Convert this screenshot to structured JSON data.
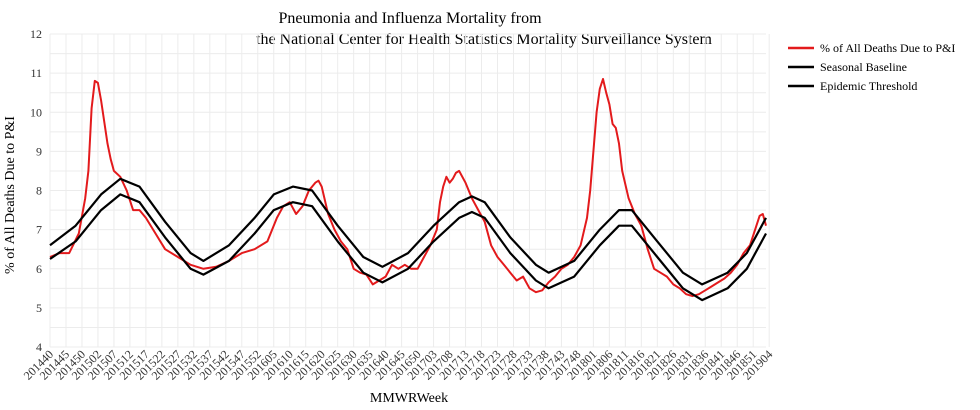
{
  "chart_data": {
    "type": "line",
    "title": [
      "Pneumonia and Influenza Mortality from",
      "the National Center for Health Statistics Mortality Surveillance System"
    ],
    "xlabel": "MMWRWeek",
    "ylabel": "% of All Deaths Due to P&I",
    "ylim": [
      4,
      12
    ],
    "y_ticks": [
      4,
      5,
      6,
      7,
      8,
      9,
      10,
      11,
      12
    ],
    "x_tick_labels": [
      "201440",
      "201445",
      "201450",
      "201502",
      "201507",
      "201512",
      "201517",
      "201522",
      "201527",
      "201532",
      "201537",
      "201542",
      "201547",
      "201552",
      "201605",
      "201610",
      "201615",
      "201620",
      "201625",
      "201630",
      "201635",
      "201640",
      "201645",
      "201650",
      "201703",
      "201708",
      "201713",
      "201718",
      "201723",
      "201728",
      "201733",
      "201738",
      "201743",
      "201748",
      "201801",
      "201806",
      "201811",
      "201816",
      "201821",
      "201826",
      "201831",
      "201836",
      "201841",
      "201846",
      "201851",
      "201904"
    ],
    "grid": true,
    "legend_position": "top-right",
    "series": [
      {
        "name": "% of All Deaths Due to P&I",
        "color": "#e31a1c",
        "points": [
          [
            0,
            6.3
          ],
          [
            3,
            6.4
          ],
          [
            6,
            6.4
          ],
          [
            9,
            6.9
          ],
          [
            11,
            7.8
          ],
          [
            12,
            8.5
          ],
          [
            13,
            10.1
          ],
          [
            14,
            10.8
          ],
          [
            15,
            10.75
          ],
          [
            16,
            10.3
          ],
          [
            18,
            9.2
          ],
          [
            19,
            8.8
          ],
          [
            20,
            8.5
          ],
          [
            22,
            8.35
          ],
          [
            24,
            8.0
          ],
          [
            26,
            7.5
          ],
          [
            28,
            7.5
          ],
          [
            30,
            7.3
          ],
          [
            33,
            6.9
          ],
          [
            36,
            6.5
          ],
          [
            40,
            6.3
          ],
          [
            44,
            6.1
          ],
          [
            48,
            6.0
          ],
          [
            52,
            6.05
          ],
          [
            56,
            6.2
          ],
          [
            60,
            6.4
          ],
          [
            64,
            6.5
          ],
          [
            68,
            6.7
          ],
          [
            71,
            7.3
          ],
          [
            73,
            7.6
          ],
          [
            75,
            7.7
          ],
          [
            77,
            7.4
          ],
          [
            79,
            7.6
          ],
          [
            81,
            8.0
          ],
          [
            83,
            8.2
          ],
          [
            84,
            8.25
          ],
          [
            85,
            8.1
          ],
          [
            87,
            7.4
          ],
          [
            89,
            7.0
          ],
          [
            91,
            6.7
          ],
          [
            93,
            6.5
          ],
          [
            95,
            6.0
          ],
          [
            97,
            5.9
          ],
          [
            99,
            5.85
          ],
          [
            101,
            5.6
          ],
          [
            103,
            5.7
          ],
          [
            105,
            5.8
          ],
          [
            107,
            6.1
          ],
          [
            109,
            6.0
          ],
          [
            111,
            6.1
          ],
          [
            113,
            6.0
          ],
          [
            115,
            6.0
          ],
          [
            117,
            6.3
          ],
          [
            119,
            6.6
          ],
          [
            121,
            7.0
          ],
          [
            122,
            7.7
          ],
          [
            123,
            8.1
          ],
          [
            124,
            8.35
          ],
          [
            125,
            8.2
          ],
          [
            126,
            8.3
          ],
          [
            127,
            8.45
          ],
          [
            128,
            8.5
          ],
          [
            130,
            8.2
          ],
          [
            132,
            7.8
          ],
          [
            134,
            7.5
          ],
          [
            136,
            7.2
          ],
          [
            138,
            6.6
          ],
          [
            140,
            6.3
          ],
          [
            142,
            6.1
          ],
          [
            144,
            5.9
          ],
          [
            146,
            5.7
          ],
          [
            148,
            5.8
          ],
          [
            150,
            5.5
          ],
          [
            152,
            5.4
          ],
          [
            154,
            5.45
          ],
          [
            156,
            5.65
          ],
          [
            158,
            5.8
          ],
          [
            160,
            6.0
          ],
          [
            162,
            6.1
          ],
          [
            164,
            6.3
          ],
          [
            166,
            6.6
          ],
          [
            168,
            7.3
          ],
          [
            169,
            8.0
          ],
          [
            170,
            9.0
          ],
          [
            171,
            10.0
          ],
          [
            172,
            10.6
          ],
          [
            173,
            10.85
          ],
          [
            174,
            10.5
          ],
          [
            175,
            10.2
          ],
          [
            176,
            9.7
          ],
          [
            177,
            9.6
          ],
          [
            178,
            9.2
          ],
          [
            179,
            8.5
          ],
          [
            181,
            7.8
          ],
          [
            183,
            7.4
          ],
          [
            185,
            7.1
          ],
          [
            187,
            6.5
          ],
          [
            189,
            6.0
          ],
          [
            191,
            5.9
          ],
          [
            193,
            5.8
          ],
          [
            195,
            5.6
          ],
          [
            197,
            5.5
          ],
          [
            199,
            5.35
          ],
          [
            201,
            5.3
          ],
          [
            203,
            5.35
          ],
          [
            205,
            5.45
          ],
          [
            207,
            5.55
          ],
          [
            209,
            5.65
          ],
          [
            211,
            5.75
          ],
          [
            213,
            5.9
          ],
          [
            215,
            6.1
          ],
          [
            217,
            6.4
          ],
          [
            219,
            6.6
          ],
          [
            221,
            7.1
          ],
          [
            222,
            7.35
          ],
          [
            223,
            7.4
          ],
          [
            224,
            7.1
          ]
        ]
      },
      {
        "name": "Seasonal Baseline",
        "color": "#000000",
        "points": [
          [
            0,
            6.25
          ],
          [
            8,
            6.7
          ],
          [
            16,
            7.5
          ],
          [
            22,
            7.9
          ],
          [
            28,
            7.7
          ],
          [
            36,
            6.8
          ],
          [
            44,
            6.0
          ],
          [
            48,
            5.85
          ],
          [
            56,
            6.2
          ],
          [
            64,
            6.9
          ],
          [
            70,
            7.5
          ],
          [
            76,
            7.7
          ],
          [
            82,
            7.6
          ],
          [
            90,
            6.7
          ],
          [
            98,
            5.9
          ],
          [
            104,
            5.65
          ],
          [
            112,
            6.0
          ],
          [
            120,
            6.7
          ],
          [
            128,
            7.3
          ],
          [
            132,
            7.45
          ],
          [
            136,
            7.3
          ],
          [
            144,
            6.4
          ],
          [
            152,
            5.7
          ],
          [
            156,
            5.5
          ],
          [
            164,
            5.8
          ],
          [
            172,
            6.6
          ],
          [
            178,
            7.1
          ],
          [
            182,
            7.1
          ],
          [
            190,
            6.3
          ],
          [
            198,
            5.5
          ],
          [
            204,
            5.2
          ],
          [
            212,
            5.5
          ],
          [
            218,
            6.0
          ],
          [
            224,
            6.9
          ]
        ]
      },
      {
        "name": "Epidemic Threshold",
        "color": "#000000",
        "points": [
          [
            0,
            6.6
          ],
          [
            8,
            7.1
          ],
          [
            16,
            7.9
          ],
          [
            22,
            8.3
          ],
          [
            28,
            8.1
          ],
          [
            36,
            7.2
          ],
          [
            44,
            6.4
          ],
          [
            48,
            6.2
          ],
          [
            56,
            6.6
          ],
          [
            64,
            7.3
          ],
          [
            70,
            7.9
          ],
          [
            76,
            8.1
          ],
          [
            82,
            8.0
          ],
          [
            90,
            7.1
          ],
          [
            98,
            6.3
          ],
          [
            104,
            6.05
          ],
          [
            112,
            6.4
          ],
          [
            120,
            7.1
          ],
          [
            128,
            7.7
          ],
          [
            132,
            7.85
          ],
          [
            136,
            7.7
          ],
          [
            144,
            6.8
          ],
          [
            152,
            6.1
          ],
          [
            156,
            5.9
          ],
          [
            164,
            6.2
          ],
          [
            172,
            7.0
          ],
          [
            178,
            7.5
          ],
          [
            182,
            7.5
          ],
          [
            190,
            6.7
          ],
          [
            198,
            5.9
          ],
          [
            204,
            5.6
          ],
          [
            212,
            5.9
          ],
          [
            218,
            6.4
          ],
          [
            224,
            7.3
          ]
        ]
      }
    ]
  }
}
